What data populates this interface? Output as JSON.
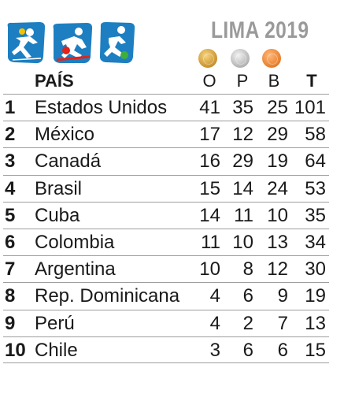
{
  "event_title": "LIMA 2019",
  "icons": [
    "karate-icon",
    "bowling-icon",
    "football-icon"
  ],
  "colors": {
    "icon_blue": "#1d7fc1",
    "gold": "#d9a641",
    "silver": "#b8b8b8",
    "bronze": "#ec8a34",
    "title_gray": "#9a9a9a"
  },
  "header": {
    "country": "PAÍS",
    "gold": "O",
    "silver": "P",
    "bronze": "B",
    "total": "T"
  },
  "rows": [
    {
      "rank": "1",
      "country": "Estados Unidos",
      "gold": "41",
      "silver": "35",
      "bronze": "25",
      "total": "101"
    },
    {
      "rank": "2",
      "country": "México",
      "gold": "17",
      "silver": "12",
      "bronze": "29",
      "total": "58"
    },
    {
      "rank": "3",
      "country": "Canadá",
      "gold": "16",
      "silver": "29",
      "bronze": "19",
      "total": "64"
    },
    {
      "rank": "4",
      "country": "Brasil",
      "gold": "15",
      "silver": "14",
      "bronze": "24",
      "total": "53"
    },
    {
      "rank": "5",
      "country": "Cuba",
      "gold": "14",
      "silver": "11",
      "bronze": "10",
      "total": "35"
    },
    {
      "rank": "6",
      "country": "Colombia",
      "gold": "11",
      "silver": "10",
      "bronze": "13",
      "total": "34"
    },
    {
      "rank": "7",
      "country": "Argentina",
      "gold": "10",
      "silver": "8",
      "bronze": "12",
      "total": "30"
    },
    {
      "rank": "8",
      "country": "Rep. Dominicana",
      "gold": "4",
      "silver": "6",
      "bronze": "9",
      "total": "19"
    },
    {
      "rank": "9",
      "country": "Perú",
      "gold": "4",
      "silver": "2",
      "bronze": "7",
      "total": "13"
    },
    {
      "rank": "10",
      "country": "Chile",
      "gold": "3",
      "silver": "6",
      "bronze": "6",
      "total": "15"
    }
  ]
}
